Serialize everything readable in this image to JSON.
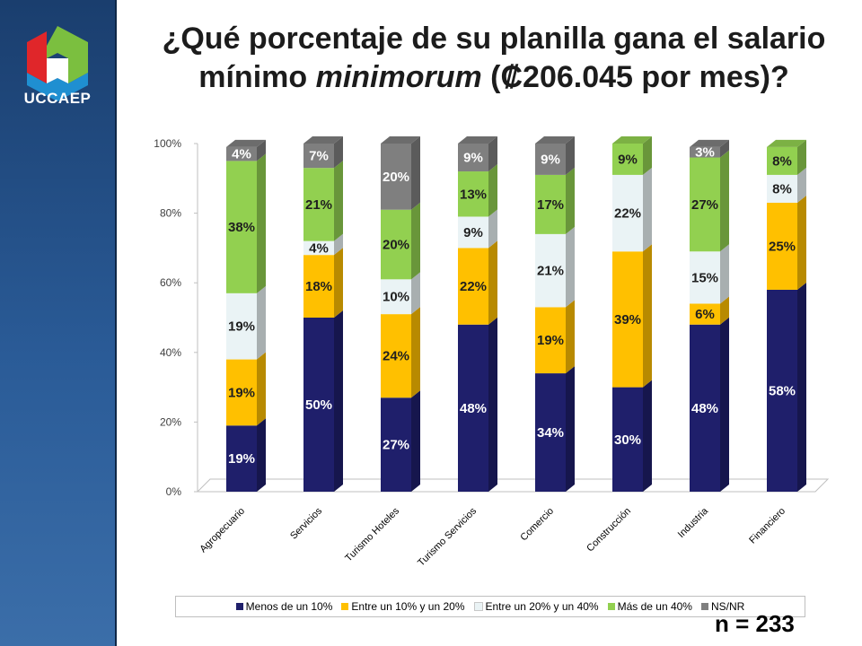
{
  "brand": {
    "name": "UCCAEP"
  },
  "title": {
    "part1": "¿Qué porcentaje de su planilla gana el salario mínimo ",
    "italic": "minimorum",
    "part2": " (₡206.045 por mes)?"
  },
  "sample_note": "n = 233",
  "chart_data": {
    "type": "bar",
    "stacked": true,
    "categories": [
      "Agropecuario",
      "Servicios",
      "Turismo Hoteles",
      "Turismo Servicios",
      "Comercio",
      "Construcción",
      "Industria",
      "Financiero"
    ],
    "series": [
      {
        "name": "Menos de un 10%",
        "color": "#1f1f6b",
        "values": [
          19,
          50,
          27,
          48,
          34,
          30,
          48,
          58
        ]
      },
      {
        "name": "Entre un 10% y un 20%",
        "color": "#ffc000",
        "values": [
          19,
          18,
          24,
          22,
          19,
          39,
          6,
          25
        ]
      },
      {
        "name": "Entre un 20% y un 40%",
        "color": "#eaf3f5",
        "values": [
          19,
          4,
          10,
          9,
          21,
          22,
          15,
          8
        ]
      },
      {
        "name": "Más de un 40%",
        "color": "#92d050",
        "values": [
          38,
          21,
          20,
          13,
          17,
          9,
          27,
          8
        ]
      },
      {
        "name": "NS/NR",
        "color": "#7f7f7f",
        "values": [
          4,
          7,
          20,
          9,
          9,
          0,
          3,
          0
        ]
      }
    ],
    "data_labels": [
      [
        "19%",
        "19%",
        "19%",
        "38%",
        "4%"
      ],
      [
        "50%",
        "18%",
        "4%",
        "21%",
        "7%"
      ],
      [
        "27%",
        "24%",
        "10%",
        "20%",
        "20%"
      ],
      [
        "48%",
        "22%",
        "9%",
        "13%",
        "9%"
      ],
      [
        "34%",
        "19%",
        "21%",
        "17%",
        "9%"
      ],
      [
        "30%",
        "39%",
        "22%",
        "9%",
        ""
      ],
      [
        "48%",
        "6%",
        "15%",
        "27%",
        "3%"
      ],
      [
        "58%",
        "25%",
        "8%",
        "8%",
        ""
      ]
    ],
    "y_ticks": [
      "0%",
      "20%",
      "40%",
      "60%",
      "80%",
      "100%"
    ],
    "ylim": [
      0,
      100
    ],
    "legend_position": "bottom"
  }
}
